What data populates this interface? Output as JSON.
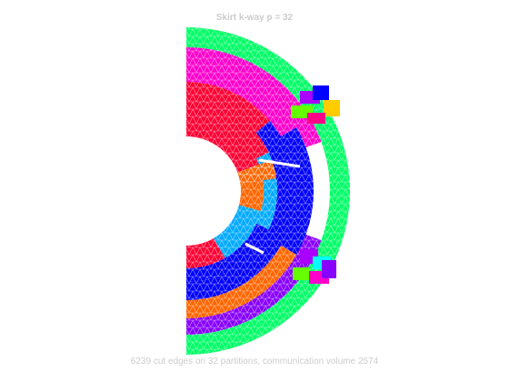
{
  "figure": {
    "title": "Skirt k-way p = 32",
    "caption": "6239 cut edges on 32 partitions, communication volume 2574"
  },
  "colors": {
    "text": "#cccccc",
    "partitions": [
      "#00ff66",
      "#ff00cc",
      "#ff0033",
      "#ff6600",
      "#00aaff",
      "#0000ff",
      "#8800ff",
      "#ffcc00",
      "#66ff00",
      "#00ffff",
      "#aa00ff",
      "#ff0088"
    ]
  }
}
